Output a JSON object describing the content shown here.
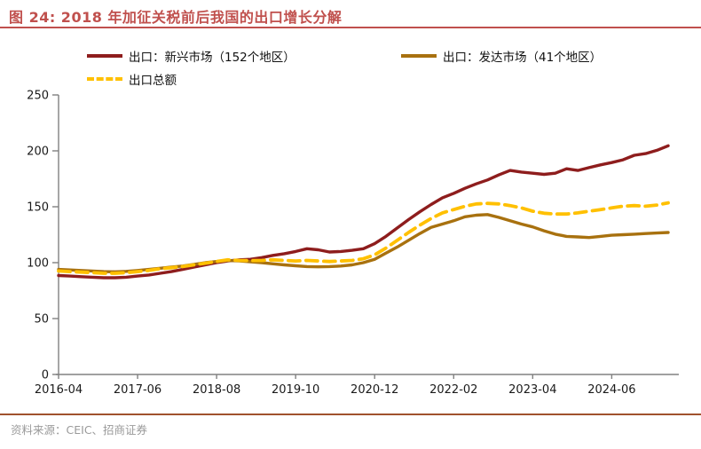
{
  "page": {
    "title": "图 24: 2018 年加征关税前后我国的出口增长分解",
    "source": "资料来源：CEIC、招商证券"
  },
  "colors": {
    "accent": "#C0504D",
    "title_rule": "#C0504D",
    "source_rule": "#A0522D",
    "axis": "#808080",
    "tick_text": "#1a1a1a",
    "source_text": "#9a9a9a",
    "emerging": "#8E1D1D",
    "developed": "#A8710F",
    "total": "#FFC000"
  },
  "legend": [
    {
      "label": "出口：新兴市场（152个地区）",
      "series": "emerging",
      "dashed": false
    },
    {
      "label": "出口：发达市场（41个地区）",
      "series": "developed",
      "dashed": false
    },
    {
      "label": "出口总额",
      "series": "total",
      "dashed": true
    }
  ],
  "chart_data": {
    "type": "line",
    "title": "2018 年加征关税前后我国的出口增长分解",
    "xlabel": "",
    "ylabel": "",
    "ylim": [
      0,
      250
    ],
    "yticks": [
      0,
      50,
      100,
      150,
      200,
      250
    ],
    "grid": false,
    "legend_position": "top-left",
    "x_unit": "year-month",
    "x": [
      "2016-04",
      "2016-06",
      "2016-08",
      "2016-10",
      "2016-12",
      "2017-02",
      "2017-04",
      "2017-06",
      "2017-08",
      "2017-10",
      "2017-12",
      "2018-02",
      "2018-04",
      "2018-06",
      "2018-08",
      "2018-10",
      "2018-12",
      "2019-02",
      "2019-04",
      "2019-06",
      "2019-08",
      "2019-10",
      "2019-12",
      "2020-02",
      "2020-04",
      "2020-06",
      "2020-08",
      "2020-10",
      "2020-12",
      "2021-02",
      "2021-04",
      "2021-06",
      "2021-08",
      "2021-10",
      "2021-12",
      "2022-02",
      "2022-04",
      "2022-06",
      "2022-08",
      "2022-10",
      "2022-12",
      "2023-02",
      "2023-04",
      "2023-06",
      "2023-08",
      "2023-10",
      "2023-12",
      "2024-02",
      "2024-04",
      "2024-06",
      "2024-08",
      "2024-10",
      "2024-12",
      "2025-02",
      "2025-04"
    ],
    "x_tick_labels": [
      "2016-04",
      "2017-06",
      "2018-08",
      "2019-10",
      "2020-12",
      "2022-02",
      "2023-04",
      "2024-06"
    ],
    "series": [
      {
        "name": "出口：新兴市场（152个地区）",
        "color_key": "emerging",
        "dashed": false,
        "values": [
          88.5,
          88,
          87.5,
          87,
          86.5,
          86.5,
          87,
          88,
          89,
          90.5,
          92,
          94,
          96,
          98,
          100,
          101.5,
          102.5,
          103,
          104.5,
          106.5,
          108,
          110,
          112.5,
          111.5,
          109.5,
          110,
          111,
          112.5,
          117,
          123.5,
          131,
          138.5,
          145.5,
          152,
          158,
          162,
          166.5,
          170.5,
          174,
          178.5,
          182.5,
          181,
          180,
          179,
          180,
          184,
          182.5,
          185,
          187.5,
          189.5,
          192,
          196,
          197.5,
          200.5,
          204.5
        ]
      },
      {
        "name": "出口：发达市场（41个地区）",
        "color_key": "developed",
        "dashed": false,
        "values": [
          94,
          93.5,
          93,
          92.5,
          92,
          91.8,
          92.2,
          93,
          94,
          95,
          96,
          97,
          98.5,
          100,
          101,
          102,
          101.5,
          100.8,
          100,
          99,
          98,
          97.2,
          96.5,
          96.3,
          96.5,
          97,
          98,
          100,
          103,
          108.5,
          114,
          120,
          126,
          131.5,
          134.5,
          137.5,
          141,
          142.5,
          143,
          140.5,
          137.5,
          134.5,
          132,
          128.5,
          125.5,
          123.5,
          123,
          122.5,
          123.5,
          124.5,
          125,
          125.5,
          126,
          126.5,
          127
        ]
      },
      {
        "name": "出口总额",
        "color_key": "total",
        "dashed": true,
        "values": [
          92.5,
          92,
          91.5,
          91,
          90.5,
          90.5,
          91,
          92,
          93,
          94.5,
          95.5,
          96.5,
          98,
          99.5,
          101,
          102.5,
          102,
          101.8,
          102,
          102.5,
          102,
          101.5,
          102,
          101.5,
          101,
          101.5,
          102,
          103.5,
          107,
          113,
          120,
          127,
          133.5,
          139.5,
          144.5,
          147.5,
          150.5,
          152.5,
          153,
          152.5,
          151,
          149,
          146,
          144.2,
          143.5,
          143.5,
          144.5,
          146,
          147.5,
          149,
          150.5,
          151,
          150.5,
          151.5,
          153.5
        ]
      }
    ]
  }
}
